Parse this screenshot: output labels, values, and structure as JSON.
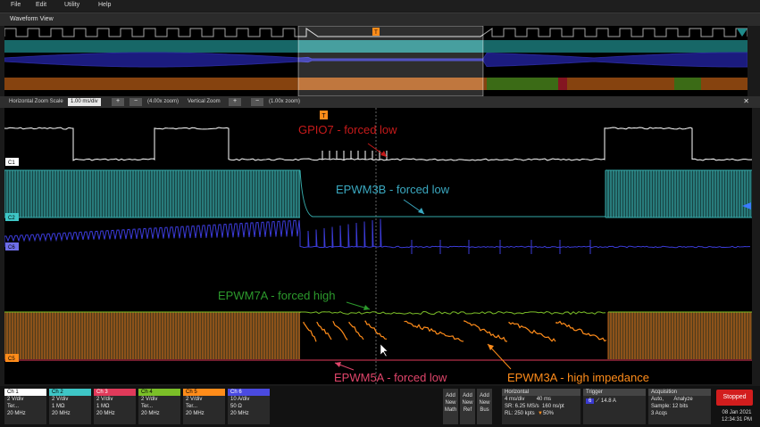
{
  "menu": [
    "File",
    "Edit",
    "Utility",
    "Help"
  ],
  "waveform_view_title": "Waveform View",
  "zoom": {
    "label": "Horizontal Zoom Scale",
    "scale": "1.00 ms/div",
    "plus": "+",
    "minus": "−",
    "hzoom": "(4.00x zoom)",
    "vlabel": "Vertical Zoom",
    "vzoom": "(1.00x zoom)",
    "close": "✕"
  },
  "trigger_marker": "T",
  "channel_markers": {
    "c1": "C1",
    "c2": "C2",
    "c6": "C6",
    "c5": "C5"
  },
  "annotations": {
    "gpio7": "GPIO7 - forced low",
    "epwm3b": "EPWM3B - forced low",
    "epwm7a": "EPWM7A - forced high",
    "epwm5a": "EPWM5A - forced low",
    "epwm3a": "EPWM3A - high impedance"
  },
  "colors": {
    "ch1": "#ffffff",
    "ch2": "#3ec6c6",
    "ch6": "#3b3bd8",
    "ch4": "#7bbf28",
    "ch5": "#ff8c1a",
    "ch3": "#e03a5a",
    "gpio7_text": "#c61a1a",
    "epwm3b_text": "#3aa8c0",
    "epwm7a_text": "#2c9a2c",
    "epwm5a_text": "#e0456a",
    "epwm3a_text": "#ff8c1a"
  },
  "channels": [
    {
      "name": "Ch 1",
      "l1": "2 V/div",
      "l2": "Ter...",
      "l3": "20 MHz",
      "color": "#ffffff"
    },
    {
      "name": "Ch 2",
      "l1": "2 V/div",
      "l2": "1 MΩ",
      "l3": "20 MHz",
      "color": "#3ec6c6"
    },
    {
      "name": "Ch 3",
      "l1": "2 V/div",
      "l2": "1 MΩ",
      "l3": "20 MHz",
      "color": "#e03a5a"
    },
    {
      "name": "Ch 4",
      "l1": "2 V/div",
      "l2": "Ter...",
      "l3": "20 MHz",
      "color": "#7bbf28"
    },
    {
      "name": "Ch 5",
      "l1": "2 V/div",
      "l2": "Ter...",
      "l3": "20 MHz",
      "color": "#ff8c1a"
    },
    {
      "name": "Ch 6",
      "l1": "10 A/div",
      "l2": "50 Ω",
      "l3": "20 MHz",
      "color": "#4a4ae0"
    }
  ],
  "add_buttons": [
    {
      "l1": "Add",
      "l2": "New",
      "l3": "Math"
    },
    {
      "l1": "Add",
      "l2": "New",
      "l3": "Ref"
    },
    {
      "l1": "Add",
      "l2": "New",
      "l3": "Bus"
    }
  ],
  "horizontal": {
    "title": "Horizontal",
    "div": "4 ms/div",
    "total": "40 ms",
    "sr": "SR: 6.25 MS/s",
    "pt": "160 ns/pt",
    "rl": "RL: 250 kpts",
    "pos": "50%"
  },
  "trigger": {
    "title": "Trigger",
    "ch": "6",
    "level": "14.8 A"
  },
  "acquisition": {
    "title": "Acquisition",
    "mode": "Auto,",
    "analyze": "Analyze",
    "sample": "Sample: 12 bits",
    "acqs": "3 Acqs"
  },
  "status": "Stopped",
  "date": "08 Jan 2021",
  "time": "12:34:31 PM"
}
